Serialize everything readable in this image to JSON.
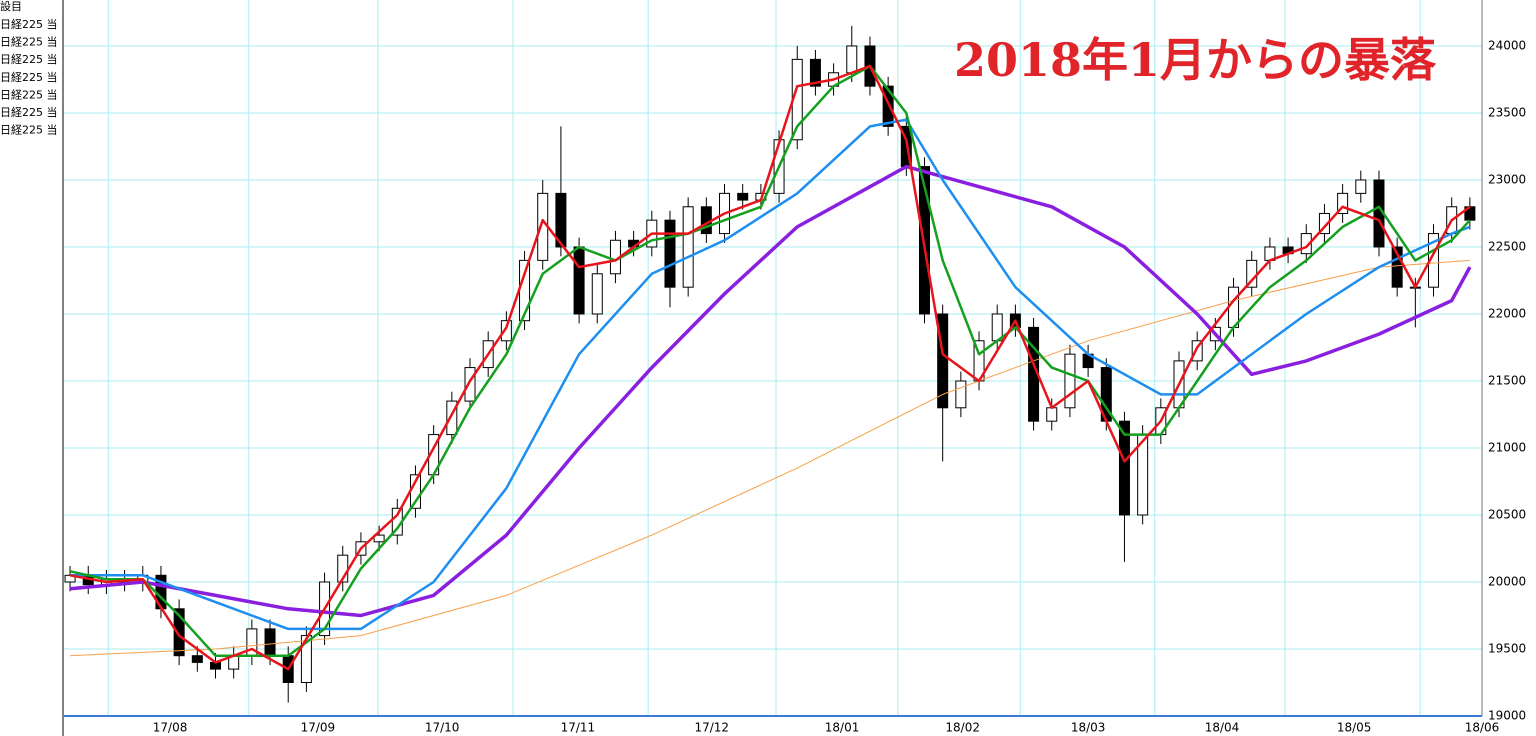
{
  "chart_data": {
    "type": "candlestick",
    "annotation": "2018年1月からの暴落",
    "annotation_color": "#e0242a",
    "legend_title": "設目",
    "legend": [
      "日経225 当",
      "日経225 当",
      "日経225 当",
      "日経225 当",
      "日経225 当",
      "日経225 当",
      "日経225 当"
    ],
    "xlim": [
      -1,
      233
    ],
    "ylim": [
      19000,
      24343
    ],
    "yticks": [
      19000,
      19500,
      20000,
      20500,
      21000,
      21500,
      22000,
      22500,
      23000,
      23500,
      24000
    ],
    "xticks": [
      {
        "value": 16.5,
        "label": "17/08"
      },
      {
        "value": 40.9,
        "label": "17/09"
      },
      {
        "value": 61.4,
        "label": "17/10"
      },
      {
        "value": 83.8,
        "label": "17/11"
      },
      {
        "value": 105.9,
        "label": "17/12"
      },
      {
        "value": 127.4,
        "label": "18/01"
      },
      {
        "value": 147.3,
        "label": "18/02"
      },
      {
        "value": 168,
        "label": "18/03"
      },
      {
        "value": 190.1,
        "label": "18/04"
      },
      {
        "value": 211.9,
        "label": "18/05"
      },
      {
        "value": 233,
        "label": "18/06"
      }
    ],
    "x_gridlines": [
      6.3,
      29.5,
      50.8,
      73.1,
      95.4,
      116.5,
      136.6,
      156.8,
      179,
      200.5,
      222.8
    ],
    "grid": true,
    "grid_color": "#a8eef2",
    "up_color": "#ffffff",
    "down_color": "#000000",
    "candles": {
      "x": [
        0,
        3,
        6,
        9,
        12,
        15,
        18,
        21,
        24,
        27,
        30,
        33,
        36,
        39,
        42,
        45,
        48,
        51,
        54,
        57,
        60,
        63,
        66,
        69,
        72,
        75,
        78,
        81,
        84,
        87,
        90,
        93,
        96,
        99,
        102,
        105,
        108,
        111,
        114,
        117,
        120,
        123,
        126,
        129,
        132,
        135,
        138,
        141,
        144,
        147,
        150,
        153,
        156,
        159,
        162,
        165,
        168,
        171,
        174,
        177,
        180,
        183,
        186,
        189,
        192,
        195,
        198,
        201,
        204,
        207,
        210,
        213,
        216,
        219,
        222,
        225,
        228,
        231
      ],
      "open": [
        20000,
        20050,
        19980,
        20020,
        20000,
        20050,
        19800,
        19450,
        19400,
        19350,
        19450,
        19650,
        19450,
        19250,
        19600,
        20000,
        20200,
        20300,
        20350,
        20550,
        20800,
        21100,
        21350,
        21600,
        21800,
        21950,
        22400,
        22900,
        22500,
        22000,
        22300,
        22550,
        22500,
        22700,
        22200,
        22800,
        22600,
        22900,
        22850,
        22900,
        23300,
        23900,
        23700,
        23800,
        24000,
        23700,
        23400,
        23100,
        22000,
        21300,
        21500,
        21800,
        22000,
        21900,
        21200,
        21300,
        21700,
        21600,
        21200,
        20500,
        21100,
        21300,
        21650,
        21800,
        21900,
        22200,
        22400,
        22500,
        22450,
        22600,
        22750,
        22900,
        23000,
        22500,
        22200,
        22200,
        22600,
        22800
      ],
      "high": [
        20120,
        20120,
        20090,
        20090,
        20120,
        20120,
        19870,
        19520,
        19470,
        19520,
        19720,
        19720,
        19520,
        19670,
        20070,
        20270,
        20370,
        20420,
        20620,
        20870,
        21170,
        21420,
        21670,
        21870,
        22020,
        22470,
        23000,
        23400,
        22570,
        22370,
        22620,
        22620,
        22770,
        22770,
        22870,
        22870,
        22970,
        22970,
        22970,
        23370,
        24000,
        23970,
        23870,
        24150,
        24070,
        23770,
        23470,
        23170,
        22070,
        21570,
        21870,
        22070,
        22070,
        21970,
        21370,
        21770,
        21770,
        21670,
        21270,
        21170,
        21370,
        21720,
        21870,
        21970,
        22270,
        22470,
        22570,
        22570,
        22670,
        22820,
        22970,
        23070,
        23070,
        22570,
        22270,
        22670,
        22870,
        22870
      ],
      "low": [
        19930,
        19910,
        19910,
        19930,
        19930,
        19730,
        19380,
        19330,
        19280,
        19280,
        19380,
        19380,
        19100,
        19180,
        19530,
        19930,
        20130,
        20230,
        20280,
        20480,
        20730,
        21030,
        21280,
        21530,
        21730,
        21880,
        22330,
        22430,
        21930,
        21930,
        22230,
        22430,
        22430,
        22050,
        22130,
        22530,
        22530,
        22780,
        22780,
        22830,
        23230,
        23630,
        23630,
        23730,
        23630,
        23330,
        23030,
        21930,
        20900,
        21230,
        21430,
        21730,
        21830,
        21130,
        21130,
        21230,
        21530,
        21130,
        20150,
        20430,
        21030,
        21230,
        21580,
        21730,
        21830,
        22130,
        22330,
        22380,
        22380,
        22530,
        22680,
        22830,
        22430,
        22130,
        21900,
        22130,
        22530,
        22630
      ],
      "close": [
        20050,
        19980,
        20020,
        20000,
        20050,
        19800,
        19450,
        19400,
        19350,
        19450,
        19650,
        19450,
        19250,
        19600,
        20000,
        20200,
        20300,
        20350,
        20550,
        20800,
        21100,
        21350,
        21600,
        21800,
        21950,
        22400,
        22900,
        22500,
        22000,
        22300,
        22550,
        22500,
        22700,
        22200,
        22800,
        22600,
        22900,
        22850,
        22900,
        23300,
        23900,
        23700,
        23800,
        24000,
        23700,
        23400,
        23100,
        22000,
        21300,
        21500,
        21800,
        22000,
        21900,
        21200,
        21300,
        21700,
        21600,
        21200,
        20500,
        21100,
        21300,
        21650,
        21800,
        21900,
        22200,
        22400,
        22500,
        22450,
        22600,
        22750,
        22900,
        23000,
        22500,
        22200,
        22200,
        22600,
        22800,
        22700
      ]
    },
    "series": [
      {
        "color": "#f7a04a",
        "width": 1,
        "x": [
          0,
          24,
          48,
          72,
          96,
          120,
          144,
          168,
          192,
          216,
          231
        ],
        "values": [
          19450,
          19500,
          19600,
          19900,
          20350,
          20850,
          21400,
          21800,
          22100,
          22350,
          22400
        ]
      },
      {
        "color": "#8a1fe0",
        "width": 3.5,
        "x": [
          0,
          12,
          24,
          36,
          48,
          60,
          72,
          84,
          96,
          108,
          120,
          132,
          138,
          150,
          162,
          174,
          186,
          195,
          204,
          216,
          228,
          231
        ],
        "values": [
          19950,
          20000,
          19900,
          19800,
          19750,
          19900,
          20350,
          21000,
          21600,
          22150,
          22650,
          22950,
          23100,
          22950,
          22800,
          22500,
          22000,
          21550,
          21650,
          21850,
          22100,
          22350
        ]
      },
      {
        "color": "#1e8ef0",
        "width": 2.5,
        "x": [
          0,
          12,
          24,
          36,
          48,
          60,
          72,
          84,
          96,
          108,
          120,
          132,
          138,
          144,
          156,
          168,
          180,
          186,
          192,
          204,
          216,
          228,
          231
        ],
        "values": [
          20050,
          20050,
          19850,
          19650,
          19650,
          20000,
          20700,
          21700,
          22300,
          22550,
          22900,
          23400,
          23450,
          23000,
          22200,
          21700,
          21400,
          21400,
          21600,
          22000,
          22350,
          22600,
          22650
        ]
      },
      {
        "color": "#14a01e",
        "width": 2.5,
        "x": [
          0,
          6,
          12,
          18,
          24,
          30,
          36,
          42,
          48,
          54,
          60,
          66,
          72,
          78,
          84,
          90,
          96,
          102,
          108,
          114,
          120,
          126,
          132,
          138,
          144,
          150,
          156,
          162,
          168,
          174,
          180,
          186,
          192,
          198,
          204,
          210,
          216,
          222,
          228,
          231
        ],
        "values": [
          20080,
          20020,
          20020,
          19750,
          19450,
          19450,
          19450,
          19650,
          20100,
          20400,
          20800,
          21300,
          21700,
          22300,
          22500,
          22400,
          22550,
          22600,
          22700,
          22800,
          23400,
          23700,
          23850,
          23500,
          22400,
          21700,
          21900,
          21600,
          21500,
          21100,
          21100,
          21500,
          21900,
          22200,
          22400,
          22650,
          22800,
          22400,
          22550,
          22700
        ]
      },
      {
        "color": "#e8141c",
        "width": 2.5,
        "x": [
          0,
          6,
          12,
          18,
          24,
          30,
          36,
          42,
          48,
          54,
          60,
          66,
          72,
          78,
          84,
          90,
          96,
          102,
          108,
          114,
          120,
          126,
          132,
          138,
          144,
          150,
          156,
          162,
          168,
          174,
          180,
          186,
          192,
          198,
          204,
          210,
          216,
          222,
          228,
          231
        ],
        "values": [
          20050,
          20000,
          20020,
          19600,
          19400,
          19500,
          19350,
          19800,
          20250,
          20500,
          21000,
          21500,
          21900,
          22700,
          22350,
          22400,
          22600,
          22600,
          22750,
          22850,
          23700,
          23750,
          23850,
          23300,
          21700,
          21500,
          21950,
          21300,
          21500,
          20900,
          21200,
          21750,
          22100,
          22400,
          22500,
          22800,
          22700,
          22200,
          22700,
          22800
        ]
      }
    ]
  }
}
